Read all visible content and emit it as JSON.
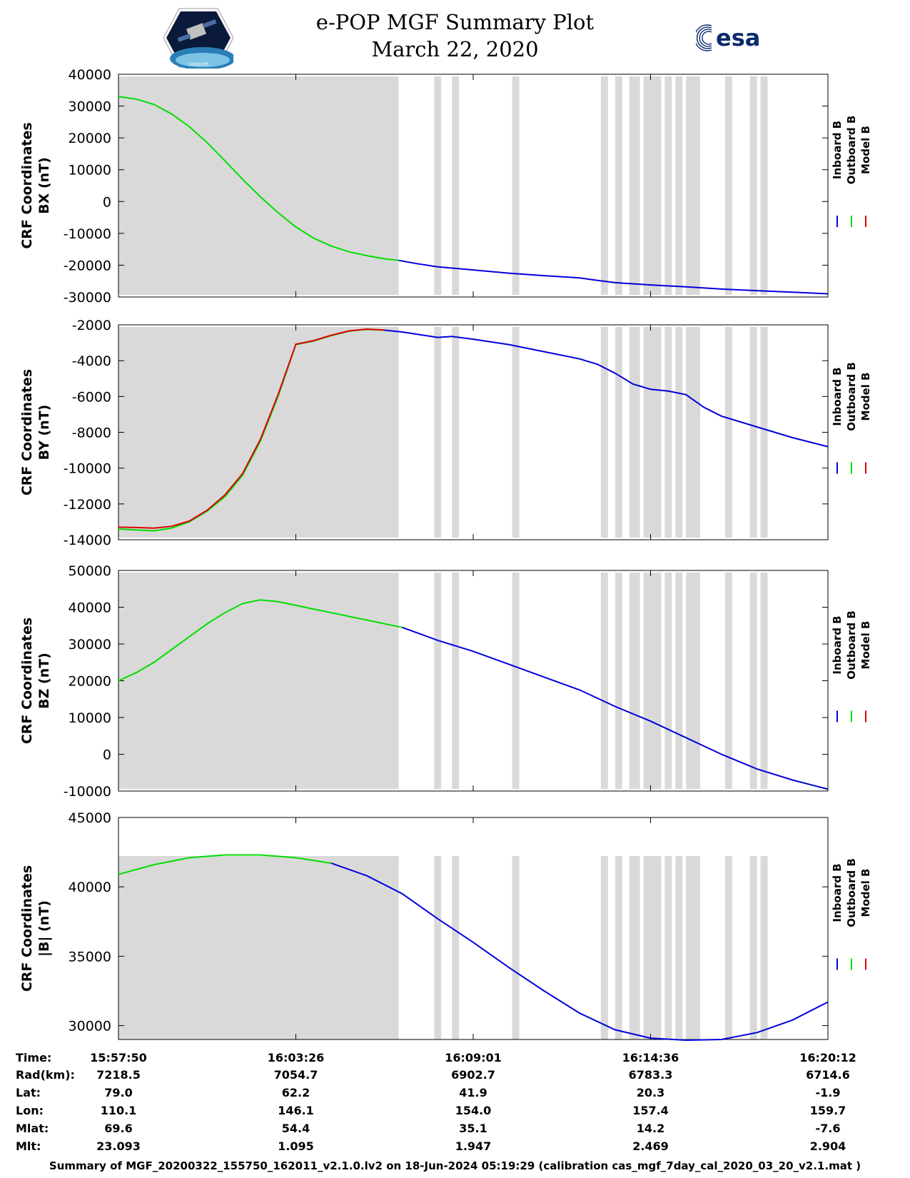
{
  "header": {
    "title_line1": "e-POP MGF Summary Plot",
    "title_line2": "March 22, 2020",
    "left_logo_text": "CASSIOPE",
    "right_logo_text": "esa"
  },
  "colors": {
    "inboard": "#0000dd",
    "outboard": "#00dd00",
    "model": "#dd0000",
    "shade": "#d9d9d9"
  },
  "legend": [
    "Inboard B",
    "Outboard B",
    "Model B"
  ],
  "chart_data": [
    {
      "type": "line",
      "ylabel_line1": "CRF Coordinates",
      "ylabel_line2": "BX (nT)",
      "ylim": [
        -30000,
        40000
      ],
      "yticks": [
        40000,
        30000,
        20000,
        10000,
        0,
        -10000,
        -20000,
        -30000
      ],
      "ytick_labels": [
        "40000",
        "30000",
        "20000",
        "10000",
        "0",
        "-10000",
        "-20000",
        "-30000"
      ],
      "series": [
        {
          "name": "Outboard B",
          "x": [
            0,
            0.5,
            1,
            1.5,
            2,
            2.5,
            3,
            3.5,
            4,
            4.5,
            5,
            5.5,
            6,
            6.5,
            7,
            7.5,
            7.9
          ],
          "values": [
            33000,
            32200,
            30500,
            27500,
            23500,
            18500,
            12800,
            7000,
            1500,
            -3500,
            -8000,
            -11500,
            -14000,
            -15800,
            -17000,
            -18000,
            -18500
          ]
        },
        {
          "name": "Inboard B",
          "x": [
            7.9,
            8.4,
            9,
            10,
            11,
            12,
            13,
            13.5,
            14,
            15,
            16,
            17,
            18,
            19,
            20
          ],
          "values": [
            -18500,
            -19500,
            -20500,
            -21500,
            -22500,
            -23300,
            -24000,
            -24800,
            -25500,
            -26200,
            -26800,
            -27500,
            -28000,
            -28500,
            -29000
          ]
        }
      ]
    },
    {
      "type": "line",
      "ylabel_line1": "CRF Coordinates",
      "ylabel_line2": "BY (nT)",
      "ylim": [
        -14000,
        -2000
      ],
      "yticks": [
        -2000,
        -4000,
        -6000,
        -8000,
        -10000,
        -12000,
        -14000
      ],
      "ytick_labels": [
        "-2000",
        "-4000",
        "-6000",
        "-8000",
        "-10000",
        "-12000",
        "-14000"
      ],
      "series": [
        {
          "name": "Outboard B",
          "x": [
            0,
            0.5,
            1,
            1.5,
            2,
            2.5,
            3,
            3.5,
            4,
            4.5,
            5,
            5.5,
            6,
            6.5,
            7,
            7.5
          ],
          "values": [
            -13400,
            -13450,
            -13500,
            -13350,
            -13000,
            -12400,
            -11600,
            -10400,
            -8500,
            -6000,
            -3100,
            -2900,
            -2600,
            -2350,
            -2250,
            -2300
          ]
        },
        {
          "name": "Model B",
          "x": [
            0,
            0.5,
            1,
            1.5,
            2,
            2.5,
            3,
            3.5,
            4,
            4.5,
            5,
            5.5,
            6,
            6.5,
            7,
            7.5
          ],
          "values": [
            -13300,
            -13320,
            -13350,
            -13250,
            -12950,
            -12350,
            -11500,
            -10300,
            -8400,
            -5900,
            -3080,
            -2880,
            -2580,
            -2340,
            -2240,
            -2290
          ]
        },
        {
          "name": "Inboard B",
          "x": [
            7.5,
            8,
            9,
            9.4,
            10,
            11,
            12,
            13,
            13.5,
            14,
            14.5,
            15,
            15.5,
            16,
            16.5,
            17,
            18,
            19,
            20
          ],
          "values": [
            -2300,
            -2400,
            -2700,
            -2650,
            -2800,
            -3100,
            -3500,
            -3900,
            -4200,
            -4700,
            -5300,
            -5600,
            -5700,
            -5900,
            -6600,
            -7100,
            -7700,
            -8300,
            -8800
          ]
        }
      ]
    },
    {
      "type": "line",
      "ylabel_line1": "CRF Coordinates",
      "ylabel_line2": "BZ (nT)",
      "ylim": [
        -10000,
        50000
      ],
      "yticks": [
        50000,
        40000,
        30000,
        20000,
        10000,
        0,
        -10000
      ],
      "ytick_labels": [
        "50000",
        "40000",
        "30000",
        "20000",
        "10000",
        "0",
        "-10000"
      ],
      "series": [
        {
          "name": "Outboard B",
          "x": [
            0,
            0.5,
            1,
            1.5,
            2,
            2.5,
            3,
            3.5,
            4,
            4.5,
            5,
            5.5,
            6,
            6.5,
            7,
            7.5,
            8
          ],
          "values": [
            20000,
            22200,
            25000,
            28500,
            32000,
            35500,
            38500,
            41000,
            42000,
            41500,
            40500,
            39500,
            38500,
            37500,
            36500,
            35500,
            34500
          ]
        },
        {
          "name": "Inboard B",
          "x": [
            8,
            9,
            10,
            11,
            12,
            13,
            14,
            15,
            16,
            17,
            18,
            19,
            20
          ],
          "values": [
            34500,
            31000,
            28000,
            24500,
            21000,
            17500,
            13000,
            9000,
            4500,
            0,
            -4000,
            -7000,
            -9500
          ]
        }
      ]
    },
    {
      "type": "line",
      "ylabel_line1": "CRF Coordinates",
      "ylabel_line2": "|B| (nT)",
      "ylim": [
        29000,
        45000
      ],
      "yticks": [
        45000,
        40000,
        35000,
        30000
      ],
      "ytick_labels": [
        "45000",
        "40000",
        "35000",
        "30000"
      ],
      "series": [
        {
          "name": "Outboard B",
          "x": [
            0,
            1,
            2,
            3,
            4,
            5,
            6
          ],
          "values": [
            40900,
            41600,
            42100,
            42300,
            42300,
            42100,
            41700
          ]
        },
        {
          "name": "Inboard B",
          "x": [
            6,
            7,
            8,
            9,
            10,
            11,
            12,
            13,
            14,
            15,
            16,
            17,
            18,
            19,
            20
          ],
          "values": [
            41700,
            40800,
            39500,
            37700,
            36000,
            34200,
            32500,
            30900,
            29700,
            29100,
            28950,
            29000,
            29500,
            30400,
            31700
          ]
        }
      ]
    }
  ],
  "xaxis": {
    "xlim": [
      0,
      20
    ],
    "tick_positions": [
      0,
      5,
      10,
      15,
      20
    ]
  },
  "ephemeris": {
    "labels": [
      "Time:",
      "Rad(km):",
      "Lat:",
      "Lon:",
      "Mlat:",
      "Mlt:"
    ],
    "columns": [
      [
        "15:57:50",
        "7218.5",
        "79.0",
        "110.1",
        "69.6",
        "23.093"
      ],
      [
        "16:03:26",
        "7054.7",
        "62.2",
        "146.1",
        "54.4",
        "1.095"
      ],
      [
        "16:09:01",
        "6902.7",
        "41.9",
        "154.0",
        "35.1",
        "1.947"
      ],
      [
        "16:14:36",
        "6783.3",
        "20.3",
        "157.4",
        "14.2",
        "2.469"
      ],
      [
        "16:20:12",
        "6714.6",
        "-1.9",
        "159.7",
        "-7.6",
        "2.904"
      ]
    ]
  },
  "shaded_intervals": [
    [
      0,
      7.9
    ],
    [
      8.9,
      9.1
    ],
    [
      9.4,
      9.6
    ],
    [
      11.1,
      11.3
    ],
    [
      13.6,
      13.8
    ],
    [
      14.0,
      14.2
    ],
    [
      14.4,
      14.7
    ],
    [
      14.8,
      15.3
    ],
    [
      15.4,
      15.6
    ],
    [
      15.7,
      15.9
    ],
    [
      16.0,
      16.4
    ],
    [
      17.1,
      17.3
    ],
    [
      17.8,
      18.0
    ],
    [
      18.1,
      18.3
    ]
  ],
  "footer": "Summary of MGF_20200322_155750_162011_v2.1.0.lv2 on 18-Jun-2024 05:19:29 (calibration cas_mgf_7day_cal_2020_03_20_v2.1.mat )"
}
